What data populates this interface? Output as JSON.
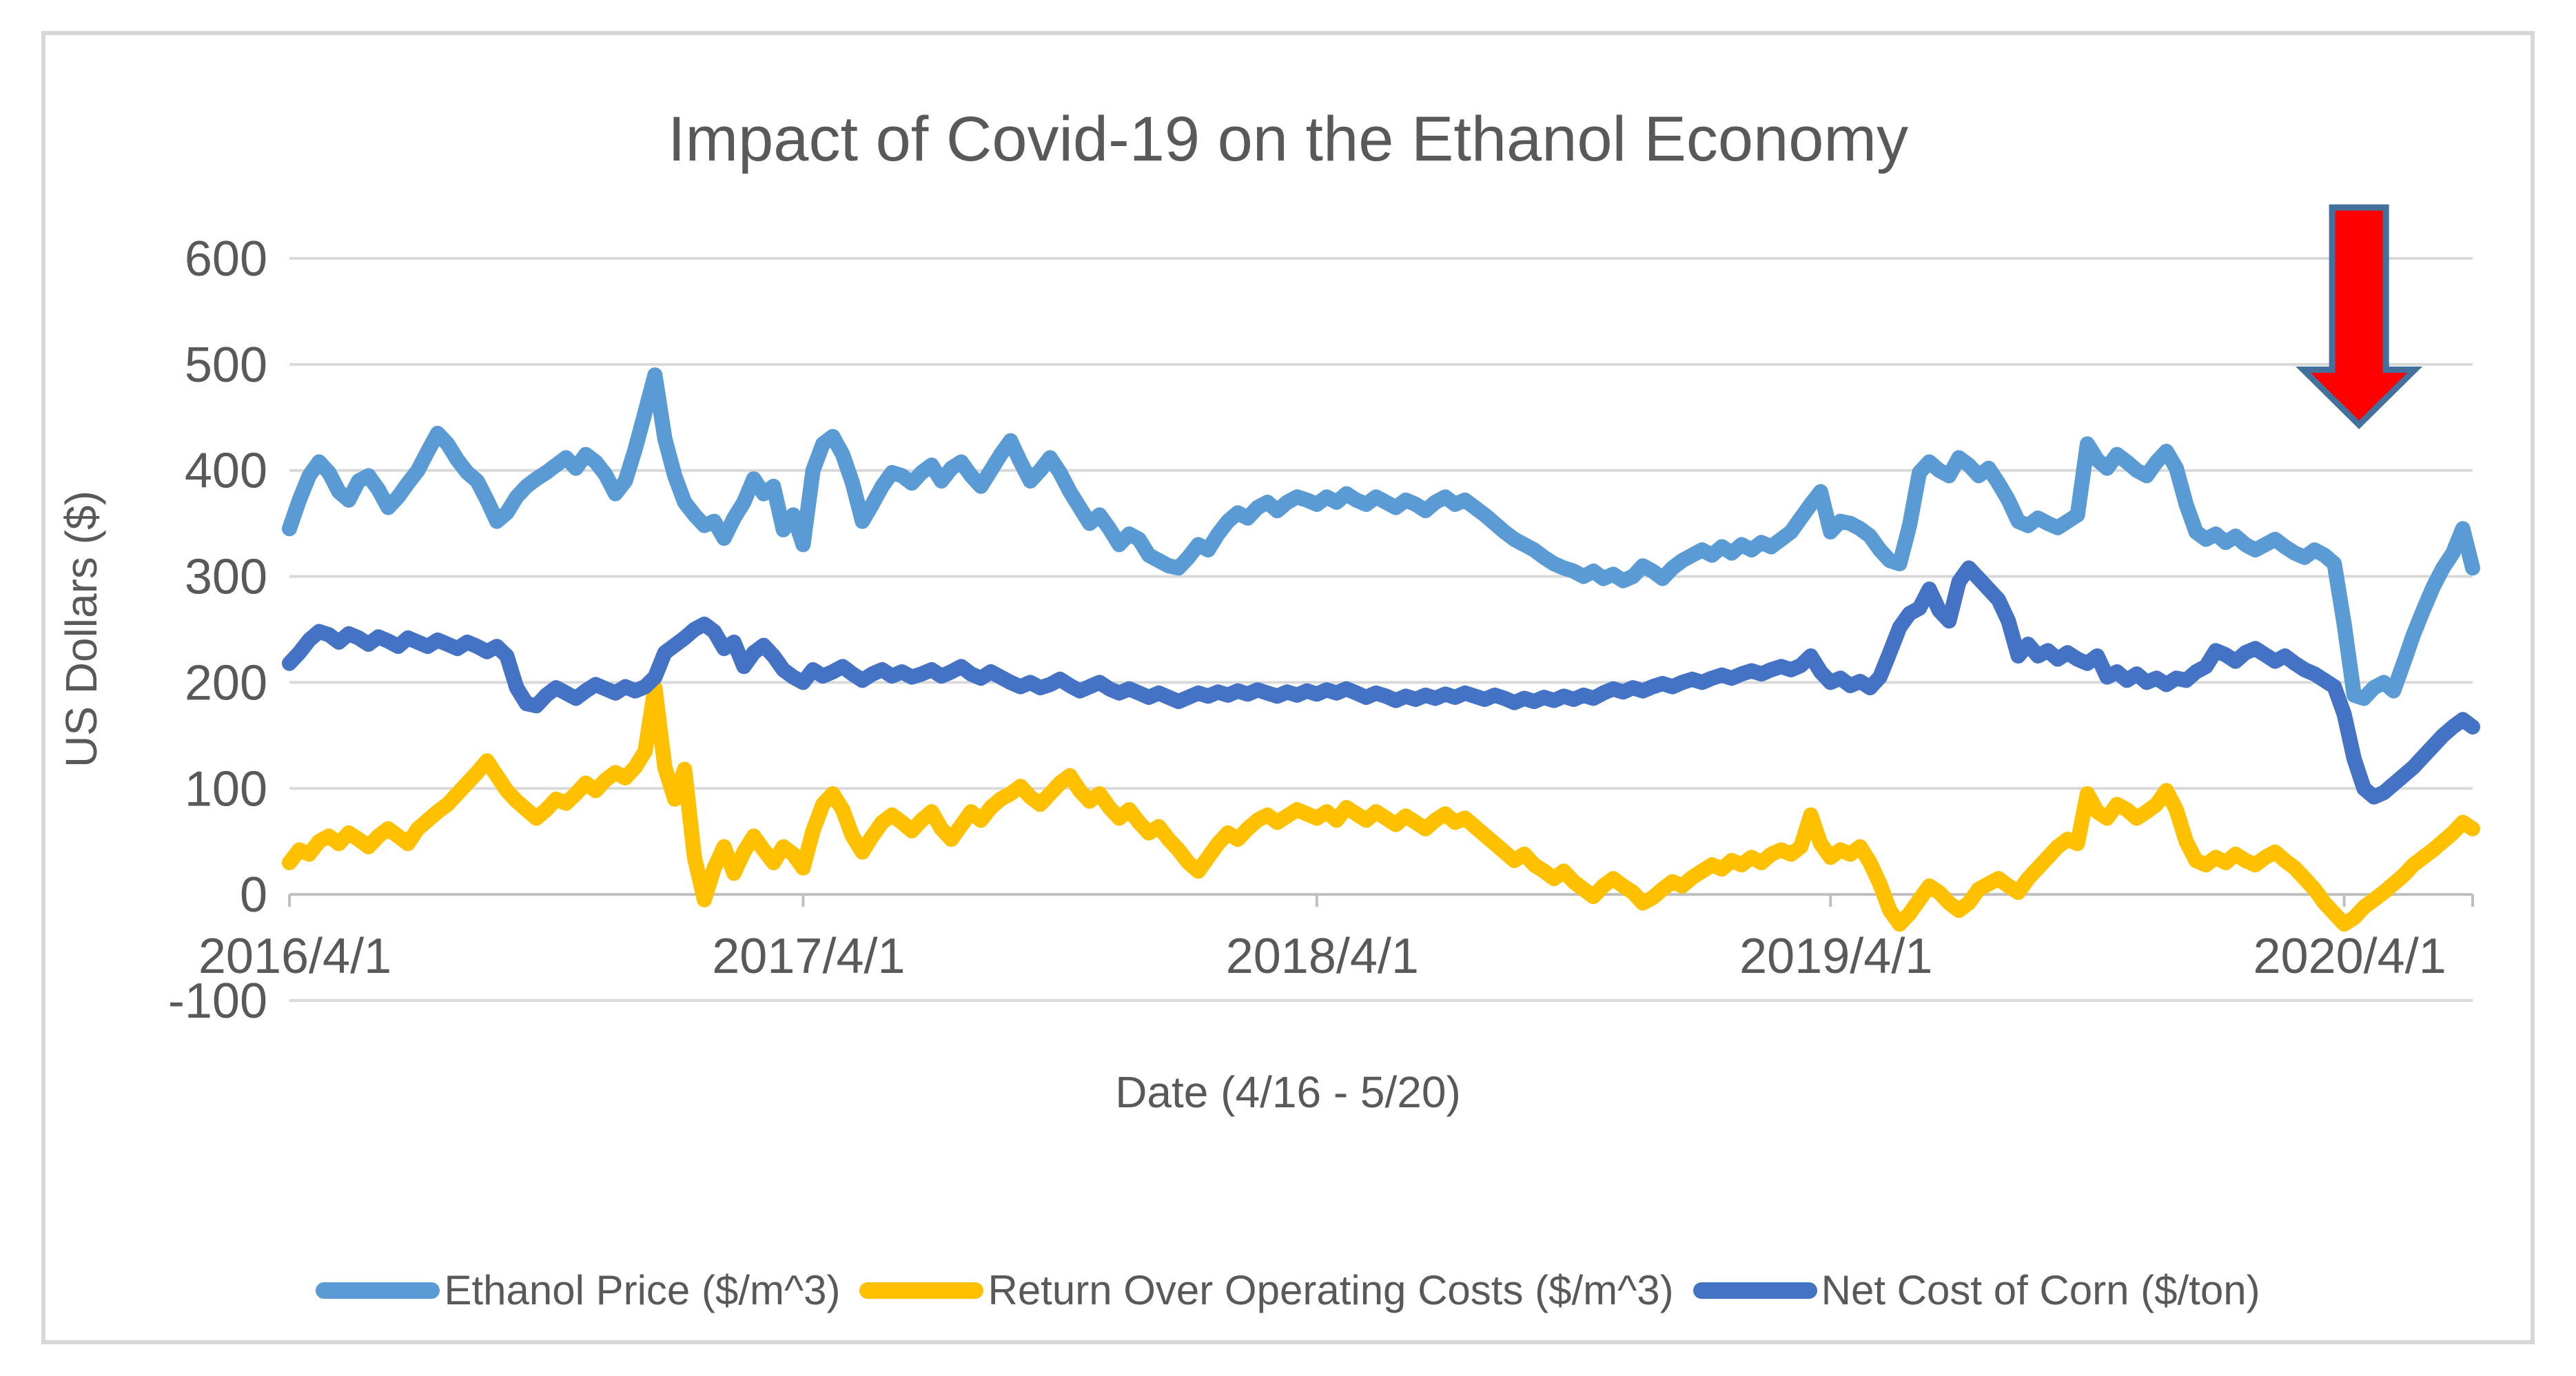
{
  "chart_data": {
    "type": "line",
    "title": "Impact of Covid-19 on the Ethanol Economy",
    "xlabel": "Date (4/16 - 5/20)",
    "ylabel": "US Dollars ($)",
    "ylim": [
      -100,
      600
    ],
    "y_ticks": [
      600,
      500,
      400,
      300,
      200,
      100,
      0,
      -100
    ],
    "x_tick_labels": [
      "2016/4/1",
      "2017/4/1",
      "2018/4/1",
      "2019/4/1",
      "2020/4/1"
    ],
    "x_tick_indices": [
      0,
      52,
      104,
      156,
      208
    ],
    "grid": true,
    "legend_position": "bottom",
    "colors": {
      "gridline": "#d9d9d9",
      "axis_line": "#bfbfbf",
      "text": "#595959"
    },
    "series": [
      {
        "name": "Ethanol Price ($/m^3)",
        "color": "#5B9BD5",
        "values": [
          345,
          372,
          395,
          408,
          398,
          380,
          372,
          390,
          395,
          382,
          365,
          375,
          388,
          400,
          418,
          435,
          425,
          410,
          398,
          390,
          372,
          352,
          360,
          375,
          385,
          392,
          398,
          405,
          412,
          402,
          415,
          408,
          396,
          378,
          390,
          420,
          455,
          490,
          430,
          395,
          370,
          358,
          348,
          352,
          336,
          355,
          370,
          392,
          378,
          385,
          344,
          358,
          330,
          400,
          425,
          432,
          415,
          388,
          352,
          368,
          385,
          398,
          395,
          388,
          398,
          405,
          390,
          402,
          408,
          395,
          385,
          400,
          415,
          428,
          408,
          390,
          400,
          412,
          398,
          380,
          365,
          350,
          358,
          345,
          330,
          340,
          335,
          320,
          315,
          310,
          308,
          318,
          330,
          325,
          340,
          352,
          360,
          355,
          365,
          370,
          362,
          370,
          375,
          372,
          368,
          375,
          370,
          378,
          372,
          368,
          375,
          370,
          365,
          372,
          368,
          362,
          370,
          375,
          368,
          372,
          365,
          358,
          350,
          342,
          335,
          330,
          325,
          318,
          312,
          308,
          305,
          300,
          305,
          298,
          302,
          296,
          300,
          310,
          305,
          298,
          308,
          315,
          320,
          325,
          320,
          328,
          322,
          330,
          325,
          332,
          328,
          335,
          342,
          355,
          368,
          380,
          342,
          352,
          350,
          345,
          338,
          325,
          315,
          312,
          348,
          398,
          408,
          400,
          395,
          412,
          405,
          395,
          402,
          388,
          372,
          352,
          348,
          355,
          350,
          346,
          352,
          358,
          425,
          410,
          402,
          415,
          408,
          400,
          395,
          408,
          418,
          402,
          368,
          342,
          335,
          340,
          332,
          338,
          330,
          325,
          330,
          335,
          328,
          322,
          318,
          325,
          320,
          312,
          255,
          188,
          185,
          195,
          200,
          192,
          218,
          245,
          268,
          290,
          308,
          322,
          345,
          308
        ]
      },
      {
        "name": "Return Over Operating Costs ($/m^3)",
        "color": "#FFC000",
        "values": [
          30,
          42,
          38,
          50,
          55,
          48,
          58,
          52,
          45,
          55,
          62,
          55,
          48,
          62,
          70,
          78,
          85,
          95,
          105,
          115,
          126,
          112,
          98,
          88,
          80,
          72,
          80,
          90,
          86,
          95,
          105,
          98,
          108,
          115,
          110,
          120,
          135,
          195,
          120,
          90,
          118,
          35,
          -5,
          25,
          45,
          20,
          40,
          55,
          42,
          30,
          45,
          38,
          25,
          60,
          85,
          95,
          80,
          55,
          40,
          55,
          68,
          75,
          68,
          60,
          70,
          78,
          62,
          52,
          65,
          78,
          70,
          82,
          90,
          95,
          102,
          92,
          85,
          95,
          105,
          112,
          98,
          88,
          95,
          82,
          72,
          80,
          68,
          58,
          64,
          52,
          42,
          30,
          22,
          35,
          48,
          58,
          52,
          62,
          70,
          75,
          68,
          74,
          80,
          76,
          72,
          78,
          70,
          82,
          76,
          70,
          78,
          72,
          66,
          74,
          68,
          62,
          70,
          76,
          68,
          72,
          64,
          56,
          48,
          40,
          32,
          38,
          28,
          22,
          15,
          22,
          12,
          5,
          -2,
          8,
          15,
          8,
          2,
          -8,
          -3,
          5,
          12,
          8,
          16,
          22,
          28,
          24,
          32,
          28,
          35,
          30,
          38,
          42,
          38,
          45,
          75,
          48,
          35,
          42,
          38,
          45,
          30,
          10,
          -15,
          -28,
          -18,
          -5,
          8,
          2,
          -8,
          -15,
          -8,
          5,
          10,
          15,
          8,
          2,
          15,
          25,
          35,
          45,
          52,
          48,
          95,
          78,
          72,
          85,
          80,
          72,
          78,
          85,
          98,
          80,
          50,
          32,
          28,
          35,
          30,
          38,
          32,
          28,
          35,
          40,
          32,
          25,
          15,
          5,
          -8,
          -18,
          -28,
          -22,
          -12,
          -5,
          2,
          10,
          18,
          28,
          35,
          42,
          50,
          58,
          68,
          62
        ]
      },
      {
        "name": "Net Cost of Corn ($/ton)",
        "color": "#4472C4",
        "values": [
          218,
          228,
          240,
          248,
          245,
          238,
          246,
          242,
          236,
          243,
          239,
          234,
          242,
          238,
          234,
          240,
          236,
          232,
          238,
          234,
          229,
          234,
          225,
          195,
          180,
          178,
          188,
          195,
          190,
          185,
          192,
          198,
          194,
          190,
          196,
          192,
          196,
          205,
          228,
          235,
          242,
          250,
          255,
          248,
          232,
          238,
          215,
          228,
          235,
          225,
          212,
          205,
          200,
          212,
          206,
          210,
          215,
          208,
          202,
          208,
          212,
          206,
          210,
          205,
          208,
          212,
          206,
          210,
          215,
          208,
          204,
          210,
          205,
          200,
          196,
          200,
          195,
          198,
          203,
          197,
          192,
          196,
          200,
          194,
          190,
          194,
          190,
          186,
          190,
          186,
          182,
          186,
          190,
          187,
          191,
          188,
          192,
          189,
          193,
          190,
          187,
          191,
          188,
          192,
          189,
          193,
          190,
          194,
          190,
          186,
          190,
          187,
          183,
          187,
          184,
          188,
          185,
          189,
          186,
          190,
          187,
          184,
          188,
          185,
          181,
          185,
          182,
          186,
          183,
          187,
          184,
          188,
          185,
          190,
          194,
          191,
          195,
          192,
          196,
          199,
          196,
          200,
          203,
          200,
          204,
          207,
          204,
          208,
          211,
          208,
          212,
          215,
          212,
          216,
          225,
          210,
          200,
          204,
          197,
          201,
          195,
          205,
          228,
          252,
          265,
          270,
          288,
          268,
          258,
          295,
          308,
          298,
          288,
          278,
          258,
          225,
          236,
          225,
          230,
          222,
          228,
          222,
          218,
          225,
          205,
          210,
          202,
          208,
          200,
          204,
          198,
          204,
          202,
          210,
          215,
          230,
          226,
          220,
          228,
          232,
          226,
          220,
          225,
          218,
          212,
          208,
          202,
          196,
          170,
          128,
          100,
          92,
          96,
          104,
          112,
          120,
          130,
          140,
          150,
          158,
          165,
          158
        ]
      }
    ],
    "annotation": {
      "name": "covid-19-impact-arrow",
      "shape": "down-arrow",
      "fill": "#FF0000",
      "outline": "#41719C",
      "x_index": 209.5,
      "top_value": 648,
      "shaft_bottom_value": 495,
      "tip_value": 443
    }
  }
}
